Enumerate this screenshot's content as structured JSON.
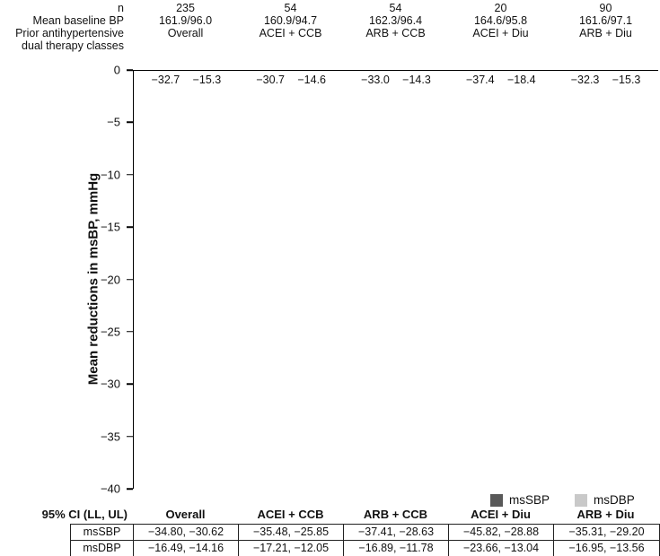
{
  "header": {
    "row_labels": [
      "n",
      "Mean baseline BP",
      "Prior antihypertensive",
      "dual therapy classes"
    ]
  },
  "chart_data": {
    "type": "bar",
    "title": "",
    "ylabel": "Mean reductions in msBP, mmHg",
    "ylim": [
      0,
      -40
    ],
    "ytick_values": [
      0,
      -5,
      -10,
      -15,
      -20,
      -25,
      -30,
      -35,
      -40
    ],
    "ytick_labels": [
      "0",
      "−5",
      "−10",
      "−15",
      "−20",
      "−25",
      "−30",
      "−35",
      "−40"
    ],
    "grid": false,
    "legend_position": "bottom-right",
    "categories": [
      "Overall",
      "ACEI + CCB",
      "ARB + CCB",
      "ACEI + Diu",
      "ARB + Diu"
    ],
    "groups": [
      {
        "label": "Overall",
        "n": "235",
        "baseline_bp": "161.9/96.0"
      },
      {
        "label": "ACEI + CCB",
        "n": "54",
        "baseline_bp": "160.9/94.7"
      },
      {
        "label": "ARB + CCB",
        "n": "54",
        "baseline_bp": "162.3/96.4"
      },
      {
        "label": "ACEI + Diu",
        "n": "20",
        "baseline_bp": "164.6/95.8"
      },
      {
        "label": "ARB + Diu",
        "n": "90",
        "baseline_bp": "161.6/97.1"
      }
    ],
    "series": [
      {
        "name": "msSBP",
        "color": "#595959",
        "values": [
          -32.7,
          -30.7,
          -33.0,
          -37.4,
          -32.3
        ],
        "labels": [
          "−32.7",
          "−30.7",
          "−33.0",
          "−37.4",
          "−32.3"
        ]
      },
      {
        "name": "msDBP",
        "color": "#c9c9c9",
        "values": [
          -15.3,
          -14.6,
          -14.3,
          -18.4,
          -15.3
        ],
        "labels": [
          "−15.3",
          "−14.6",
          "−14.3",
          "−18.4",
          "−15.3"
        ]
      }
    ]
  },
  "table": {
    "corner_label": "95% CI (LL, UL)",
    "column_headers": [
      "Overall",
      "ACEI + CCB",
      "ARB + CCB",
      "ACEI + Diu",
      "ARB + Diu"
    ],
    "rows": [
      {
        "label": "msSBP",
        "cells": [
          "−34.80, −30.62",
          "−35.48, −25.85",
          "−37.41, −28.63",
          "−45.82, −28.88",
          "−35.31, −29.20"
        ]
      },
      {
        "label": "msDBP",
        "cells": [
          "−16.49, −14.16",
          "−17.21, −12.05",
          "−16.89, −11.78",
          "−23.66, −13.04",
          "−16.95, −13.56"
        ]
      }
    ]
  }
}
